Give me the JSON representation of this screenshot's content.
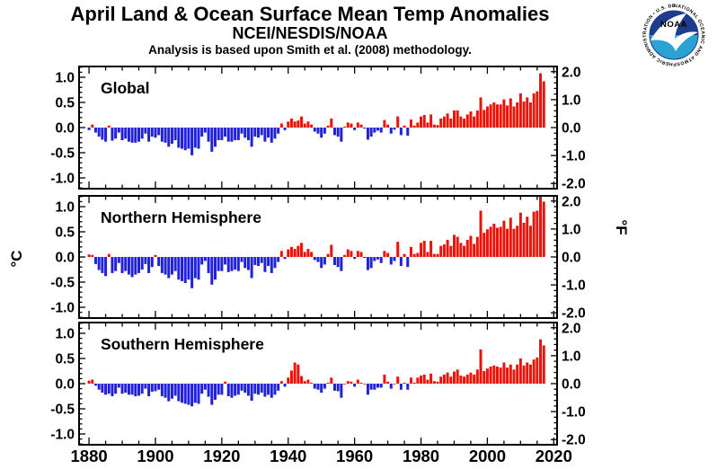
{
  "header": {
    "title": "April Land & Ocean Surface Mean Temp Anomalies",
    "subtitle": "NCEI/NESDIS/NOAA",
    "note": "Analysis is based upon Smith et al. (2008) methodology."
  },
  "logo": {
    "acronym": "NOAA",
    "ring_text": "NATIONAL OCEANIC AND ATMOSPHERIC ADMINISTRATION • U.S. DEPARTMENT OF COMMERCE •",
    "navy": "#1e3c8c",
    "cyan": "#2aa3d2"
  },
  "axes": {
    "left_unit": "°C",
    "right_unit": "°F",
    "x_tick_labels": [
      1880,
      1900,
      1920,
      1940,
      1960,
      1980,
      2000,
      2020
    ],
    "left_tick_labels": [
      "1.0",
      "0.5",
      "0.0",
      "-0.5",
      "-1.0"
    ],
    "right_tick_labels": [
      "2.0",
      "1.0",
      "0.0",
      "-1.0",
      "-2.0"
    ]
  },
  "colors": {
    "positive_bar": "#e8140a",
    "negative_bar": "#2121d8",
    "axis": "#000000",
    "background": "#ffffff"
  },
  "chart_data": [
    {
      "type": "bar",
      "title": "Global",
      "year_start": 1880,
      "year_end": 2017,
      "xlim": [
        1877,
        2021
      ],
      "ylim_c": [
        -1.215,
        1.215
      ],
      "ylabel_left": "°C",
      "ylabel_right": "°F",
      "x_ticks": [
        1880,
        1900,
        1920,
        1940,
        1960,
        1980,
        2000,
        2020
      ],
      "y_ticks_c": [
        1.0,
        0.5,
        0.0,
        -0.5,
        -1.0
      ],
      "y_ticks_f": [
        2.0,
        1.0,
        0.0,
        -1.0,
        -2.0
      ],
      "grid": false,
      "legend": "none",
      "values": [
        -0.05,
        0.06,
        -0.1,
        -0.18,
        -0.24,
        -0.28,
        0.04,
        -0.26,
        -0.22,
        -0.1,
        -0.25,
        -0.22,
        -0.28,
        -0.3,
        -0.3,
        -0.28,
        -0.22,
        -0.12,
        -0.28,
        -0.18,
        -0.2,
        -0.15,
        -0.28,
        -0.3,
        -0.38,
        -0.32,
        -0.25,
        -0.4,
        -0.42,
        -0.45,
        -0.42,
        -0.55,
        -0.4,
        -0.42,
        -0.18,
        -0.1,
        -0.28,
        -0.48,
        -0.38,
        -0.25,
        -0.25,
        -0.18,
        -0.28,
        -0.28,
        -0.25,
        -0.25,
        -0.12,
        -0.2,
        -0.25,
        -0.38,
        -0.18,
        -0.2,
        -0.15,
        -0.28,
        -0.2,
        -0.3,
        -0.22,
        -0.12,
        0.08,
        -0.05,
        0.12,
        0.18,
        0.12,
        0.14,
        0.22,
        0.08,
        0.12,
        0.06,
        -0.08,
        -0.12,
        -0.2,
        -0.12,
        0.04,
        0.18,
        -0.15,
        -0.18,
        -0.28,
        0.02,
        0.1,
        0.08,
        -0.05,
        0.1,
        0.06,
        -0.02,
        -0.24,
        -0.18,
        -0.1,
        -0.06,
        -0.1,
        0.15,
        0.06,
        -0.12,
        -0.04,
        0.22,
        -0.15,
        0.04,
        -0.16,
        0.16,
        0.04,
        0.1,
        0.22,
        0.25,
        0.1,
        0.26,
        0.06,
        0.05,
        0.18,
        0.22,
        0.28,
        0.18,
        0.34,
        0.34,
        0.22,
        0.18,
        0.26,
        0.32,
        0.22,
        0.34,
        0.6,
        0.35,
        0.42,
        0.46,
        0.5,
        0.46,
        0.46,
        0.56,
        0.44,
        0.58,
        0.42,
        0.5,
        0.68,
        0.52,
        0.6,
        0.5,
        0.68,
        0.72,
        1.08,
        0.92
      ]
    },
    {
      "type": "bar",
      "title": "Northern Hemisphere",
      "year_start": 1880,
      "year_end": 2017,
      "xlim": [
        1877,
        2021
      ],
      "ylim_c": [
        -1.215,
        1.215
      ],
      "ylabel_left": "°C",
      "ylabel_right": "°F",
      "x_ticks": [
        1880,
        1900,
        1920,
        1940,
        1960,
        1980,
        2000,
        2020
      ],
      "y_ticks_c": [
        1.0,
        0.5,
        0.0,
        -0.5,
        -1.0
      ],
      "y_ticks_f": [
        2.0,
        1.0,
        0.0,
        -1.0,
        -2.0
      ],
      "grid": false,
      "legend": "none",
      "values": [
        0.05,
        0.04,
        -0.14,
        -0.26,
        -0.32,
        -0.38,
        0.06,
        -0.32,
        -0.28,
        -0.12,
        -0.32,
        -0.28,
        -0.35,
        -0.4,
        -0.35,
        -0.32,
        -0.25,
        -0.14,
        -0.32,
        -0.2,
        0.04,
        -0.18,
        -0.32,
        -0.35,
        -0.42,
        -0.35,
        -0.28,
        -0.45,
        -0.48,
        -0.52,
        -0.45,
        -0.62,
        -0.42,
        -0.45,
        -0.15,
        -0.08,
        -0.32,
        -0.55,
        -0.45,
        -0.28,
        -0.28,
        -0.15,
        -0.3,
        -0.28,
        -0.25,
        -0.28,
        -0.1,
        -0.22,
        -0.26,
        -0.42,
        -0.16,
        -0.18,
        -0.12,
        -0.3,
        -0.18,
        -0.32,
        -0.22,
        -0.1,
        0.12,
        -0.04,
        0.15,
        0.2,
        0.16,
        0.22,
        0.28,
        0.1,
        0.16,
        0.1,
        -0.06,
        -0.1,
        -0.22,
        -0.15,
        0.06,
        0.24,
        -0.16,
        -0.2,
        -0.28,
        0.04,
        0.15,
        0.12,
        -0.04,
        0.12,
        0.1,
        -0.02,
        -0.26,
        -0.22,
        -0.08,
        -0.05,
        -0.12,
        0.12,
        0.08,
        -0.15,
        -0.08,
        0.3,
        -0.18,
        0.06,
        -0.2,
        0.2,
        0.06,
        0.08,
        0.28,
        0.32,
        0.1,
        0.32,
        0.06,
        0.06,
        0.22,
        0.25,
        0.34,
        0.22,
        0.44,
        0.4,
        0.28,
        0.22,
        0.34,
        0.42,
        0.26,
        0.4,
        0.92,
        0.48,
        0.55,
        0.6,
        0.66,
        0.58,
        0.6,
        0.72,
        0.56,
        0.78,
        0.56,
        0.62,
        0.88,
        0.68,
        0.8,
        0.62,
        0.9,
        0.92,
        1.28,
        1.1
      ]
    },
    {
      "type": "bar",
      "title": "Southern Hemisphere",
      "year_start": 1880,
      "year_end": 2017,
      "xlim": [
        1877,
        2021
      ],
      "ylim_c": [
        -1.215,
        1.215
      ],
      "ylabel_left": "°C",
      "ylabel_right": "°F",
      "x_ticks": [
        1880,
        1900,
        1920,
        1940,
        1960,
        1980,
        2000,
        2020
      ],
      "y_ticks_c": [
        1.0,
        0.5,
        0.0,
        -0.5,
        -1.0
      ],
      "y_ticks_f": [
        2.0,
        1.0,
        0.0,
        -1.0,
        -2.0
      ],
      "grid": false,
      "legend": "none",
      "values": [
        0.06,
        0.08,
        -0.04,
        -0.12,
        -0.18,
        -0.22,
        -0.2,
        -0.25,
        -0.2,
        -0.08,
        -0.2,
        -0.18,
        -0.22,
        -0.22,
        -0.25,
        -0.24,
        -0.2,
        -0.1,
        -0.25,
        -0.16,
        -0.15,
        -0.12,
        -0.25,
        -0.28,
        -0.35,
        -0.3,
        -0.24,
        -0.35,
        -0.38,
        -0.4,
        -0.42,
        -0.45,
        -0.38,
        -0.4,
        -0.2,
        -0.12,
        -0.26,
        -0.42,
        -0.32,
        -0.22,
        -0.22,
        0.04,
        -0.25,
        -0.28,
        -0.24,
        -0.22,
        -0.14,
        -0.18,
        -0.24,
        -0.34,
        -0.2,
        -0.22,
        -0.18,
        -0.26,
        -0.22,
        -0.28,
        -0.22,
        -0.14,
        0.05,
        -0.06,
        0.12,
        0.26,
        0.42,
        0.38,
        0.15,
        0.05,
        0.08,
        0.02,
        -0.1,
        -0.12,
        -0.18,
        -0.1,
        0.02,
        0.12,
        -0.14,
        -0.15,
        -0.28,
        0.0,
        0.05,
        0.04,
        -0.06,
        0.08,
        0.02,
        0.0,
        -0.22,
        -0.12,
        -0.12,
        -0.08,
        -0.08,
        0.18,
        0.04,
        -0.1,
        0.0,
        0.14,
        -0.12,
        0.02,
        -0.12,
        0.12,
        0.02,
        0.12,
        0.16,
        0.18,
        0.08,
        0.2,
        0.05,
        0.04,
        0.14,
        0.18,
        0.22,
        0.14,
        0.24,
        0.28,
        0.16,
        0.14,
        0.18,
        0.22,
        0.18,
        0.28,
        0.68,
        0.25,
        0.3,
        0.34,
        0.36,
        0.34,
        0.32,
        0.42,
        0.32,
        0.38,
        0.28,
        0.38,
        0.5,
        0.36,
        0.42,
        0.38,
        0.48,
        0.52,
        0.88,
        0.76
      ]
    }
  ]
}
